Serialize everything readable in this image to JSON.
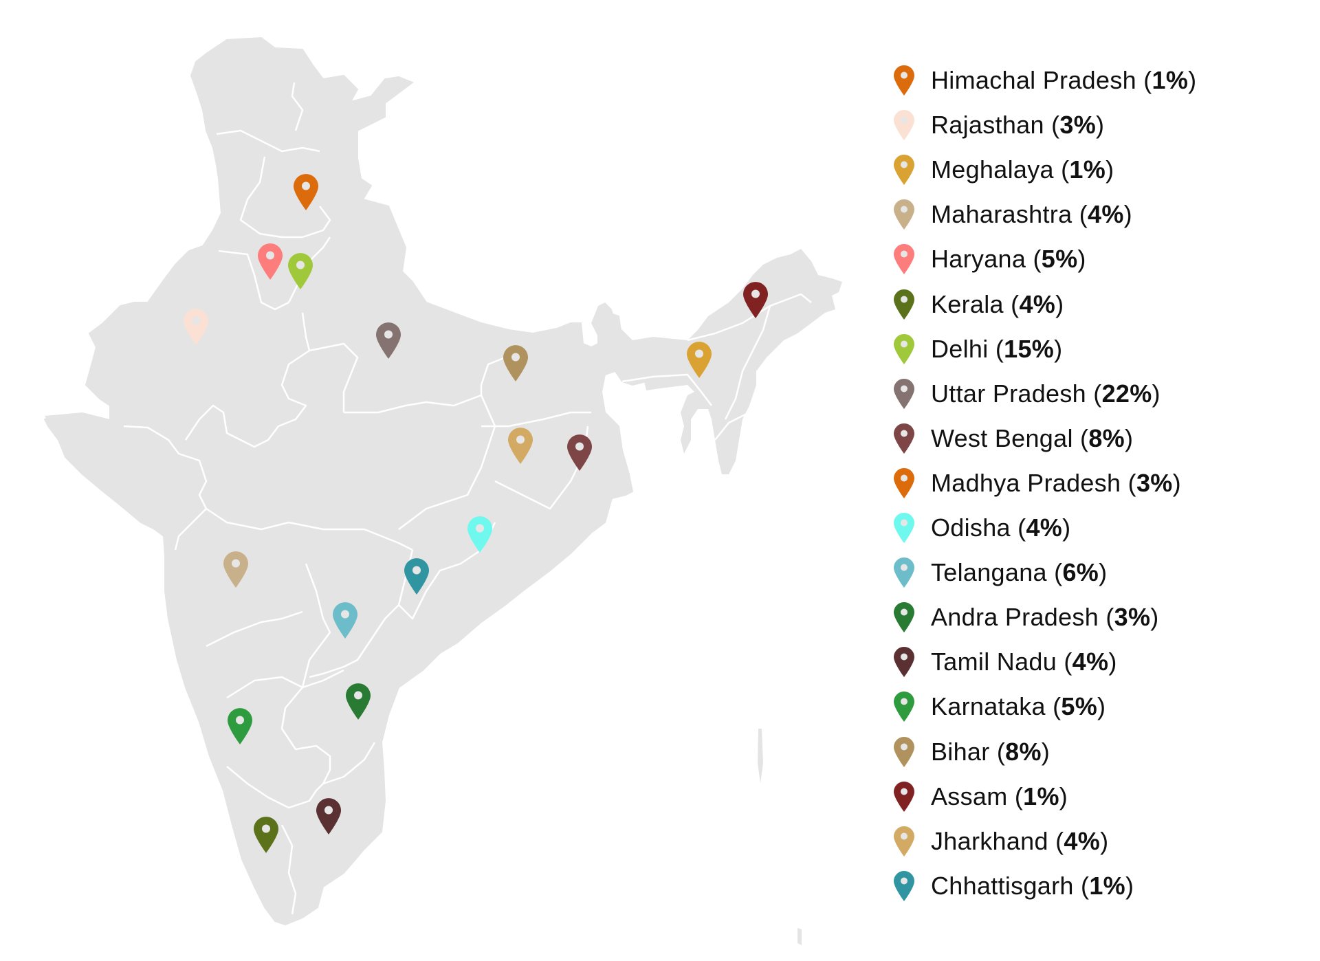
{
  "map": {
    "land_color": "#e4e4e4",
    "border_color": "#ffffff"
  },
  "legend": [
    {
      "state": "Himachal Pradesh",
      "pct": "1%",
      "color": "#dc6b0c",
      "pin": [
        445,
        306
      ]
    },
    {
      "state": "Rajasthan",
      "pct": "3%",
      "color": "#fbe1d4",
      "pin": [
        285,
        502
      ]
    },
    {
      "state": "Meghalaya",
      "pct": "1%",
      "color": "#d9a233",
      "pin": [
        1017,
        550
      ]
    },
    {
      "state": "Maharashtra",
      "pct": "4%",
      "color": "#c8b08a",
      "pin": [
        343,
        855
      ]
    },
    {
      "state": "Haryana",
      "pct": "5%",
      "color": "#fd7c7c",
      "pin": [
        393,
        407
      ]
    },
    {
      "state": "Kerala",
      "pct": "4%",
      "color": "#5b721b",
      "pin": [
        387,
        1241
      ]
    },
    {
      "state": "Delhi",
      "pct": "15%",
      "color": "#9fc93a",
      "pin": [
        437,
        421
      ]
    },
    {
      "state": "Uttar Pradesh",
      "pct": "22%",
      "color": "#847371",
      "pin": [
        565,
        522
      ]
    },
    {
      "state": "West Bengal",
      "pct": "8%",
      "color": "#7e4546",
      "pin": [
        843,
        685
      ]
    },
    {
      "state": "Madhya Pradesh",
      "pct": "3%",
      "color": "#dc6b0c",
      "pin": null
    },
    {
      "state": "Odisha",
      "pct": "4%",
      "color": "#6ff8ee",
      "pin": [
        698,
        804
      ]
    },
    {
      "state": "Telangana",
      "pct": "6%",
      "color": "#6dbcc9",
      "pin": [
        502,
        929
      ]
    },
    {
      "state": "Andra Pradesh",
      "pct": "3%",
      "color": "#297a33",
      "pin": [
        521,
        1047
      ]
    },
    {
      "state": "Tamil Nadu",
      "pct": "4%",
      "color": "#5a3032",
      "pin": [
        478,
        1214
      ]
    },
    {
      "state": "Karnataka",
      "pct": "5%",
      "color": "#2e9b3e",
      "pin": [
        349,
        1083
      ]
    },
    {
      "state": "Bihar",
      "pct": "8%",
      "color": "#b0925e",
      "pin": [
        750,
        555
      ]
    },
    {
      "state": "Assam",
      "pct": "1%",
      "color": "#812222",
      "pin": [
        1099,
        463
      ]
    },
    {
      "state": "Jharkhand",
      "pct": "4%",
      "color": "#d2aa64",
      "pin": [
        757,
        675
      ]
    },
    {
      "state": "Chhattisgarh",
      "pct": "1%",
      "color": "#3095a1",
      "pin": [
        606,
        865
      ]
    }
  ],
  "chart_data": {
    "type": "map",
    "title": "",
    "categories": [
      "Himachal Pradesh",
      "Rajasthan",
      "Meghalaya",
      "Maharashtra",
      "Haryana",
      "Kerala",
      "Delhi",
      "Uttar Pradesh",
      "West Bengal",
      "Madhya Pradesh",
      "Odisha",
      "Telangana",
      "Andra Pradesh",
      "Tamil Nadu",
      "Karnataka",
      "Bihar",
      "Assam",
      "Jharkhand",
      "Chhattisgarh"
    ],
    "values": [
      1,
      3,
      1,
      4,
      5,
      4,
      15,
      22,
      8,
      3,
      4,
      6,
      3,
      4,
      5,
      8,
      1,
      4,
      1
    ],
    "unit": "%",
    "legend_position": "right"
  }
}
